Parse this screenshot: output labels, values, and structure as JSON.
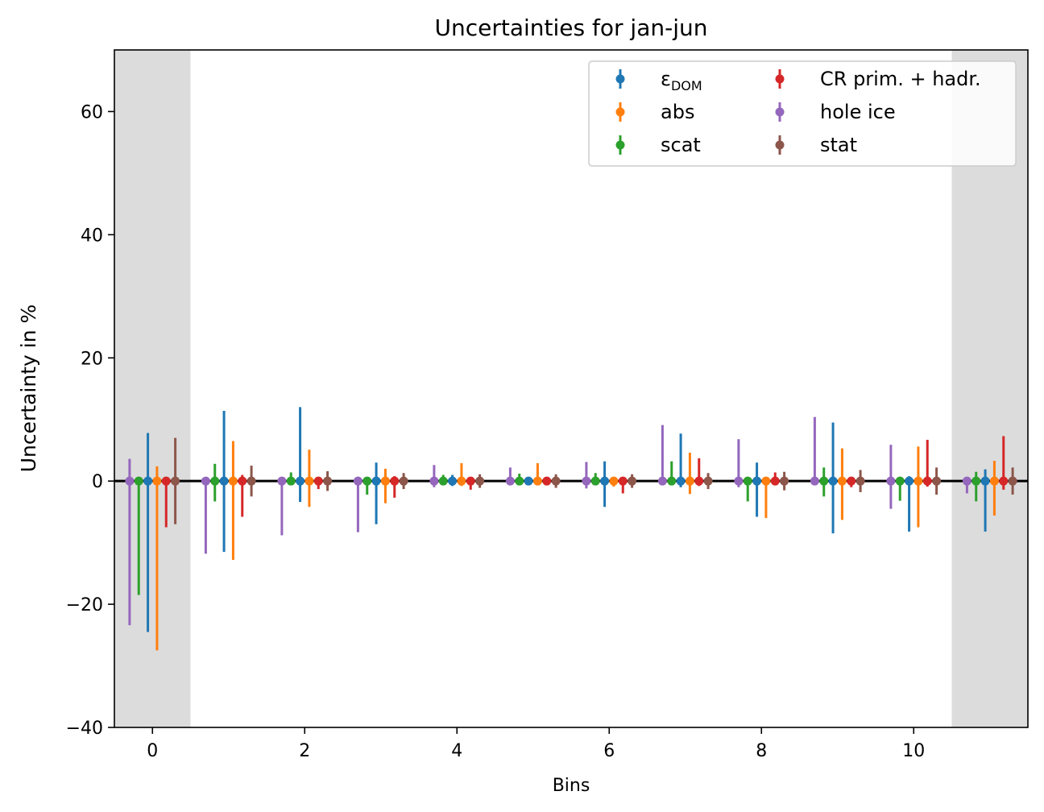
{
  "chart_data": {
    "type": "errorbar",
    "title": "Uncertainties for jan-jun",
    "xlabel": "Bins",
    "ylabel": "Uncertainty in %",
    "xlim": [
      -0.5,
      11.5
    ],
    "ylim": [
      -40,
      70
    ],
    "xticks": [
      0,
      2,
      4,
      6,
      8,
      10
    ],
    "yticks": [
      -40,
      -20,
      0,
      20,
      40,
      60
    ],
    "shaded_x_ranges": [
      [
        -0.5,
        0.5
      ],
      [
        10.5,
        11.5
      ]
    ],
    "reference_line_y": 0,
    "legend_location": "upper right",
    "legend_columns": 2,
    "series": [
      {
        "name": "ε",
        "name_subscript": "DOM",
        "color": "#1f77b4",
        "offset": -0.06,
        "upper": [
          7.8,
          11.4,
          12.0,
          3.0,
          1.0,
          0.6,
          3.2,
          7.7,
          3.0,
          9.5,
          0.8,
          1.9
        ],
        "lower": [
          -24.5,
          -11.5,
          -3.4,
          -7.0,
          -0.8,
          -0.6,
          -4.2,
          -1.0,
          -5.8,
          -8.5,
          -8.2,
          -8.2
        ]
      },
      {
        "name": "abs",
        "color": "#ff7f0e",
        "offset": 0.06,
        "upper": [
          2.4,
          6.5,
          5.1,
          2.0,
          2.9,
          2.9,
          0.5,
          4.6,
          0.6,
          5.3,
          5.6,
          3.3
        ],
        "lower": [
          -27.5,
          -12.8,
          -4.2,
          -3.6,
          -0.8,
          -0.4,
          -0.9,
          -2.1,
          -6.0,
          -6.3,
          -7.5,
          -5.6
        ]
      },
      {
        "name": "scat",
        "color": "#2ca02c",
        "offset": -0.18,
        "upper": [
          0.6,
          2.8,
          1.4,
          0.5,
          1.0,
          1.2,
          1.3,
          3.2,
          0.3,
          2.2,
          0.5,
          1.5
        ],
        "lower": [
          -18.5,
          -3.3,
          -0.6,
          -2.2,
          -0.6,
          -0.5,
          -0.6,
          -0.4,
          -3.3,
          -2.5,
          -3.2,
          -3.3
        ]
      },
      {
        "name": "CR prim. + hadr.",
        "color": "#d62728",
        "offset": 0.18,
        "upper": [
          0.5,
          1.0,
          0.6,
          0.8,
          0.3,
          0.4,
          0.6,
          3.7,
          1.4,
          0.4,
          6.7,
          7.3
        ],
        "lower": [
          -7.5,
          -5.8,
          -1.3,
          -2.7,
          -1.4,
          -0.7,
          -2.0,
          -0.8,
          -0.7,
          -1.0,
          -0.9,
          -1.4
        ]
      },
      {
        "name": "hole ice",
        "color": "#9467bd",
        "offset": -0.3,
        "upper": [
          3.6,
          0.4,
          0.3,
          0.3,
          2.6,
          2.2,
          3.1,
          9.1,
          6.8,
          10.4,
          5.9,
          0.4
        ],
        "lower": [
          -23.4,
          -11.8,
          -8.8,
          -8.3,
          -1.0,
          -0.5,
          -1.2,
          -0.3,
          -1.0,
          -0.3,
          -4.5,
          -2.0
        ]
      },
      {
        "name": "stat",
        "color": "#8c564b",
        "offset": 0.3,
        "upper": [
          7.0,
          2.5,
          1.6,
          1.3,
          1.1,
          1.1,
          1.1,
          1.3,
          1.5,
          1.8,
          2.2,
          2.2
        ],
        "lower": [
          -7.0,
          -2.5,
          -1.6,
          -1.3,
          -1.1,
          -1.1,
          -1.1,
          -1.3,
          -1.5,
          -1.8,
          -2.2,
          -2.2
        ]
      }
    ],
    "legend_order": [
      0,
      3,
      1,
      4,
      2,
      5
    ]
  }
}
